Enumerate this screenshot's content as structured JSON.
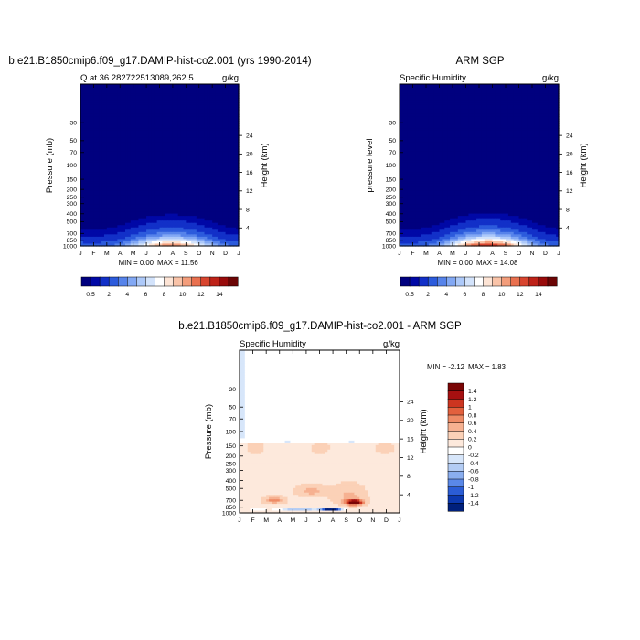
{
  "chart_data": [
    {
      "type": "heatmap",
      "title": "b.e21.B1850cmip6.f09_g17.DAMIP-hist-co2.001 (yrs 1990-2014)",
      "subtitle_left": "Q at 36.282722513089,262.5",
      "subtitle_right": "g/kg",
      "ylabel": "Pressure (mb)",
      "ylabel_right": "Height (km)",
      "months": [
        "J",
        "F",
        "M",
        "A",
        "M",
        "J",
        "J",
        "A",
        "S",
        "O",
        "N",
        "D",
        "J"
      ],
      "pressure_ticks": [
        30,
        50,
        70,
        100,
        150,
        200,
        250,
        300,
        400,
        500,
        700,
        850,
        1000
      ],
      "height_ticks": [
        24,
        20,
        16,
        12,
        8,
        4
      ],
      "min_label": "MIN =   0.00",
      "max_label": "MAX =  11.56",
      "min": 0.0,
      "max": 11.56,
      "peak_month_index": 6.9,
      "colorbar_labels": [
        "0.5",
        "2",
        "4",
        "6",
        "8",
        "10",
        "12",
        "14"
      ]
    },
    {
      "type": "heatmap",
      "title": "ARM SGP",
      "subtitle_left": "Specific Humidity",
      "subtitle_right": "g/kg",
      "ylabel": "pressure level",
      "ylabel_right": "Height (km)",
      "months": [
        "J",
        "F",
        "M",
        "A",
        "M",
        "J",
        "J",
        "A",
        "S",
        "O",
        "N",
        "D",
        "J"
      ],
      "pressure_ticks": [
        30,
        50,
        70,
        100,
        150,
        200,
        250,
        300,
        400,
        500,
        700,
        850,
        1000
      ],
      "height_ticks": [
        24,
        20,
        16,
        12,
        8,
        4
      ],
      "min_label": "MIN =   0.00",
      "max_label": "MAX =  14.08",
      "min": 0.0,
      "max": 14.08,
      "peak_month_index": 6.7,
      "colorbar_labels": [
        "0.5",
        "2",
        "4",
        "6",
        "8",
        "10",
        "12",
        "14"
      ]
    },
    {
      "type": "heatmap",
      "title": "b.e21.B1850cmip6.f09_g17.DAMIP-hist-co2.001 - ARM SGP",
      "subtitle_left": "Specific Humidity",
      "subtitle_right": "g/kg",
      "ylabel": "Pressure (mb)",
      "ylabel_right": "Height (km)",
      "months": [
        "J",
        "F",
        "M",
        "A",
        "M",
        "J",
        "J",
        "A",
        "S",
        "O",
        "N",
        "D",
        "J"
      ],
      "pressure_ticks": [
        30,
        50,
        70,
        100,
        150,
        200,
        250,
        300,
        400,
        500,
        700,
        850,
        1000
      ],
      "height_ticks": [
        24,
        20,
        16,
        12,
        8,
        4
      ],
      "min_label": "MIN =  -2.12",
      "max_label": "MAX =   1.83",
      "min": -2.12,
      "max": 1.83,
      "colorbar_labels": [
        "1.4",
        "1.2",
        "1",
        "0.8",
        "0.6",
        "0.4",
        "0.2",
        "0",
        "-0.2",
        "-0.4",
        "-0.6",
        "-0.8",
        "-1",
        "-1.2",
        "-1.4"
      ]
    }
  ],
  "colors": {
    "seq_scale": [
      "#00007f",
      "#0008a6",
      "#1230c8",
      "#2c5bdc",
      "#5683ea",
      "#82a8f4",
      "#adc9f9",
      "#d3e3fb",
      "#ffffff",
      "#fde4d5",
      "#f9c3a8",
      "#f39d7b",
      "#e9704f",
      "#d8452f",
      "#be2218",
      "#990b0b",
      "#6b0505"
    ],
    "diff_scale": [
      "#00207c",
      "#0c39b0",
      "#2b5dd6",
      "#5a88e8",
      "#8aaeef",
      "#b3ccf4",
      "#d7e6fa",
      "#ffffff",
      "#fde9dc",
      "#fbd1b7",
      "#f6b191",
      "#ee8b66",
      "#e2603d",
      "#cc3520",
      "#a51010",
      "#7a0505"
    ]
  }
}
